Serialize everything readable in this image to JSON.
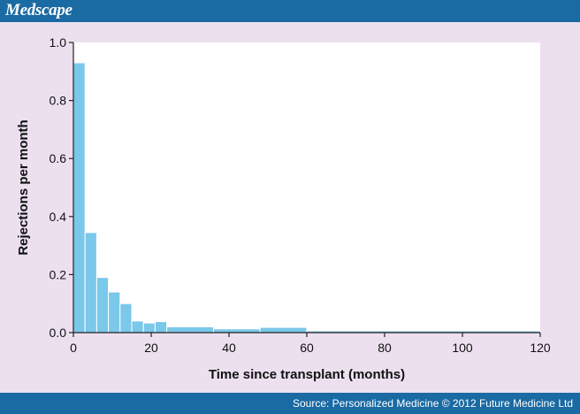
{
  "header": {
    "brand": "Medscape"
  },
  "footer": {
    "source": "Source: Personalized Medicine © 2012 Future Medicine Ltd"
  },
  "colors": {
    "header": "#1a6aa3",
    "panel": "#ece0ef",
    "bar": "#7ac8ea"
  },
  "chart_data": {
    "type": "bar",
    "title": "",
    "xlabel": "Time since transplant (months)",
    "ylabel": "Rejections per month",
    "xlim": [
      0,
      120
    ],
    "ylim": [
      0,
      1.0
    ],
    "xticks": [
      "0",
      "20",
      "40",
      "60",
      "80",
      "100",
      "120"
    ],
    "yticks": [
      "0.0",
      "0.2",
      "0.4",
      "0.6",
      "0.8",
      "1.0"
    ],
    "grid": false,
    "legend": "none",
    "bins": [
      {
        "x0": 0,
        "x1": 3,
        "value": 0.93
      },
      {
        "x0": 3,
        "x1": 6,
        "value": 0.345
      },
      {
        "x0": 6,
        "x1": 9,
        "value": 0.19
      },
      {
        "x0": 9,
        "x1": 12,
        "value": 0.14
      },
      {
        "x0": 12,
        "x1": 15,
        "value": 0.1
      },
      {
        "x0": 15,
        "x1": 18,
        "value": 0.04
      },
      {
        "x0": 18,
        "x1": 21,
        "value": 0.033
      },
      {
        "x0": 21,
        "x1": 24,
        "value": 0.038
      },
      {
        "x0": 24,
        "x1": 36,
        "value": 0.02
      },
      {
        "x0": 36,
        "x1": 48,
        "value": 0.013
      },
      {
        "x0": 48,
        "x1": 60,
        "value": 0.018
      },
      {
        "x0": 60,
        "x1": 120,
        "value": 0.006
      }
    ]
  }
}
